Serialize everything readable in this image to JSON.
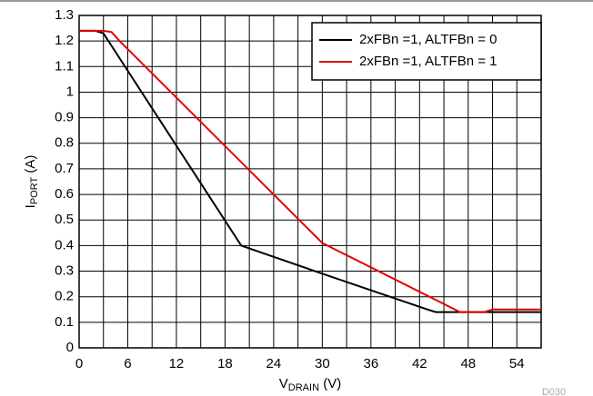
{
  "chart_data": {
    "type": "line",
    "x_label": {
      "main": "V",
      "sub": "DRAIN",
      "unit": " (V)"
    },
    "y_label": {
      "main": "I",
      "sub": "PORT",
      "unit": " (A)"
    },
    "footnote": "D030",
    "xlim": [
      0,
      57
    ],
    "ylim": [
      0,
      1.3
    ],
    "xticks": [
      0,
      6,
      12,
      18,
      24,
      30,
      36,
      42,
      48,
      54
    ],
    "x_minor_grid": [
      3,
      9,
      15,
      21,
      27,
      33,
      39,
      45,
      51
    ],
    "yticks": [
      0,
      0.1,
      0.2,
      0.3,
      0.4,
      0.5,
      0.6,
      0.7,
      0.8,
      0.9,
      1,
      1.1,
      1.2,
      1.3
    ],
    "grid": true,
    "legend": "upper right",
    "series": [
      {
        "name": "2xFBn =1, ALTFBn = 0",
        "color": "#000000",
        "x": [
          0,
          2,
          3,
          20,
          30,
          43,
          44,
          57
        ],
        "values": [
          1.24,
          1.24,
          1.23,
          0.4,
          0.29,
          0.15,
          0.14,
          0.14
        ]
      },
      {
        "name": "2xFBn =1, ALTFBn = 1",
        "color": "#e00000",
        "x": [
          0,
          3,
          4,
          5,
          30,
          47,
          50,
          51,
          57
        ],
        "values": [
          1.24,
          1.24,
          1.235,
          1.2,
          0.41,
          0.14,
          0.14,
          0.15,
          0.15
        ]
      }
    ]
  }
}
